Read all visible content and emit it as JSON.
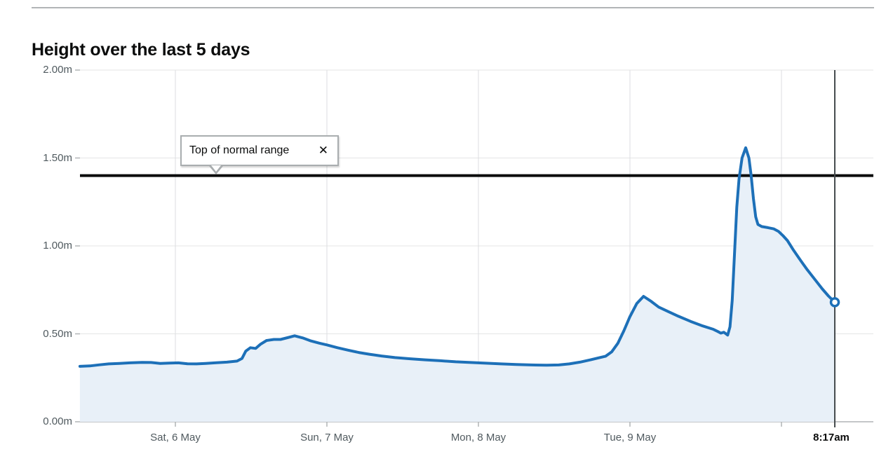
{
  "header": {
    "title": "Height over the last 5 days"
  },
  "tooltip": {
    "label": "Top of normal range",
    "close_icon": "✕"
  },
  "colors": {
    "line": "#1d70b8",
    "area_fill": "#e8f0f8",
    "grid_horizontal": "#e4e5e6",
    "grid_vertical": "#dcdee0",
    "axis_line": "#b1b4b6",
    "tick": "#b1b4b6",
    "threshold_line": "#0b0c0c",
    "now_line": "#454a4d",
    "marker_fill": "#ffffff",
    "tick_label": "#505a5f",
    "now_label": "#0b0c0c",
    "title": "#0b0c0c",
    "rule": "#b1b4b6"
  },
  "chart_data": {
    "type": "area",
    "title": "Height over the last 5 days",
    "unit": "m",
    "xlabel": "",
    "ylabel": "",
    "ylim": [
      0,
      2.0
    ],
    "grid": true,
    "legend": "none",
    "x_unit": "days since Sat 6 May 00:00",
    "yticks": [
      {
        "value": 2.0,
        "label": "2.00m"
      },
      {
        "value": 1.5,
        "label": "1.50m"
      },
      {
        "value": 1.0,
        "label": "1.00m"
      },
      {
        "value": 0.5,
        "label": "0.50m"
      },
      {
        "value": 0.0,
        "label": "0.00m"
      }
    ],
    "xticks": [
      {
        "x": 0,
        "label": "Sat, 6 May"
      },
      {
        "x": 1,
        "label": "Sun, 7 May"
      },
      {
        "x": 2,
        "label": "Mon, 8 May"
      },
      {
        "x": 3,
        "label": "Tue, 9 May"
      },
      {
        "x": 4,
        "label": ""
      }
    ],
    "threshold": {
      "value": 1.4,
      "label": "Top of normal range"
    },
    "latest": {
      "x": 4.352,
      "label": "8:17am",
      "value": 0.68
    },
    "points": [
      [
        -0.63,
        0.315
      ],
      [
        -0.56,
        0.318
      ],
      [
        -0.5,
        0.324
      ],
      [
        -0.44,
        0.329
      ],
      [
        -0.37,
        0.332
      ],
      [
        -0.3,
        0.335
      ],
      [
        -0.22,
        0.338
      ],
      [
        -0.16,
        0.337
      ],
      [
        -0.1,
        0.332
      ],
      [
        -0.04,
        0.334
      ],
      [
        0.02,
        0.335
      ],
      [
        0.08,
        0.33
      ],
      [
        0.14,
        0.329
      ],
      [
        0.2,
        0.332
      ],
      [
        0.27,
        0.336
      ],
      [
        0.34,
        0.339
      ],
      [
        0.407,
        0.345
      ],
      [
        0.44,
        0.36
      ],
      [
        0.465,
        0.402
      ],
      [
        0.495,
        0.421
      ],
      [
        0.53,
        0.417
      ],
      [
        0.56,
        0.44
      ],
      [
        0.602,
        0.462
      ],
      [
        0.65,
        0.468
      ],
      [
        0.694,
        0.468
      ],
      [
        0.74,
        0.478
      ],
      [
        0.787,
        0.489
      ],
      [
        0.84,
        0.477
      ],
      [
        0.89,
        0.461
      ],
      [
        0.95,
        0.447
      ],
      [
        1.0,
        0.437
      ],
      [
        1.07,
        0.421
      ],
      [
        1.14,
        0.407
      ],
      [
        1.21,
        0.394
      ],
      [
        1.28,
        0.384
      ],
      [
        1.36,
        0.374
      ],
      [
        1.45,
        0.365
      ],
      [
        1.55,
        0.358
      ],
      [
        1.65,
        0.352
      ],
      [
        1.75,
        0.347
      ],
      [
        1.85,
        0.341
      ],
      [
        1.95,
        0.337
      ],
      [
        2.05,
        0.333
      ],
      [
        2.15,
        0.329
      ],
      [
        2.25,
        0.326
      ],
      [
        2.35,
        0.323
      ],
      [
        2.45,
        0.322
      ],
      [
        2.53,
        0.323
      ],
      [
        2.6,
        0.329
      ],
      [
        2.67,
        0.339
      ],
      [
        2.74,
        0.352
      ],
      [
        2.8,
        0.365
      ],
      [
        2.84,
        0.373
      ],
      [
        2.88,
        0.398
      ],
      [
        2.92,
        0.446
      ],
      [
        2.96,
        0.518
      ],
      [
        3.0,
        0.598
      ],
      [
        3.045,
        0.672
      ],
      [
        3.09,
        0.713
      ],
      [
        3.14,
        0.685
      ],
      [
        3.19,
        0.652
      ],
      [
        3.25,
        0.628
      ],
      [
        3.32,
        0.6
      ],
      [
        3.4,
        0.571
      ],
      [
        3.48,
        0.545
      ],
      [
        3.55,
        0.526
      ],
      [
        3.58,
        0.513
      ],
      [
        3.6,
        0.504
      ],
      [
        3.62,
        0.509
      ],
      [
        3.645,
        0.493
      ],
      [
        3.66,
        0.54
      ],
      [
        3.675,
        0.69
      ],
      [
        3.69,
        0.95
      ],
      [
        3.705,
        1.22
      ],
      [
        3.72,
        1.38
      ],
      [
        3.74,
        1.5
      ],
      [
        3.764,
        1.558
      ],
      [
        3.785,
        1.5
      ],
      [
        3.8,
        1.4
      ],
      [
        3.815,
        1.27
      ],
      [
        3.83,
        1.165
      ],
      [
        3.845,
        1.122
      ],
      [
        3.87,
        1.11
      ],
      [
        3.91,
        1.104
      ],
      [
        3.95,
        1.097
      ],
      [
        3.98,
        1.083
      ],
      [
        4.01,
        1.058
      ],
      [
        4.04,
        1.03
      ],
      [
        4.08,
        0.975
      ],
      [
        4.12,
        0.925
      ],
      [
        4.17,
        0.865
      ],
      [
        4.22,
        0.81
      ],
      [
        4.27,
        0.755
      ],
      [
        4.31,
        0.715
      ],
      [
        4.34,
        0.69
      ],
      [
        4.352,
        0.678
      ]
    ]
  }
}
